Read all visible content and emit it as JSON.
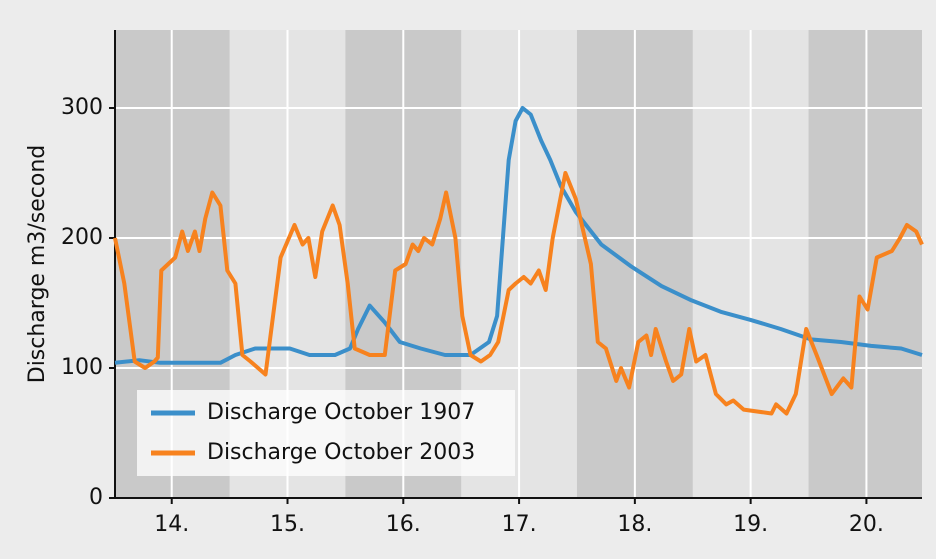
{
  "chart_data": {
    "type": "line",
    "y_label": "Discharge  m3/second",
    "xlim": [
      13.51,
      20.48
    ],
    "xticks": [
      {
        "value": 14,
        "label": "14."
      },
      {
        "value": 15,
        "label": "15."
      },
      {
        "value": 16,
        "label": "16."
      },
      {
        "value": 17,
        "label": "17."
      },
      {
        "value": 18,
        "label": "18."
      },
      {
        "value": 19,
        "label": "19."
      },
      {
        "value": 20,
        "label": "20."
      }
    ],
    "ylim": [
      0,
      360
    ],
    "yticks": [
      0,
      100,
      200,
      300
    ],
    "grid": true,
    "legend": "lower left",
    "series": [
      {
        "name": "Discharge October 1907",
        "color": "#3b8fca",
        "x": [
          13.51,
          13.72,
          13.9,
          14.42,
          14.55,
          14.72,
          15.02,
          15.19,
          15.41,
          15.54,
          15.61,
          15.71,
          15.84,
          15.97,
          16.15,
          16.36,
          16.58,
          16.74,
          16.81,
          16.91,
          16.97,
          17.03,
          17.1,
          17.19,
          17.27,
          17.36,
          17.49,
          17.71,
          17.97,
          18.23,
          18.49,
          18.75,
          19.0,
          19.26,
          19.52,
          19.78,
          20.04,
          20.3,
          20.48
        ],
        "values": [
          104,
          106,
          104,
          104,
          110,
          115,
          115,
          110,
          110,
          115,
          130,
          148,
          135,
          120,
          115,
          110,
          110,
          120,
          140,
          260,
          290,
          300,
          295,
          275,
          260,
          240,
          220,
          195,
          178,
          163,
          152,
          143,
          137,
          130,
          122,
          120,
          117,
          115,
          110
        ]
      },
      {
        "name": "Discharge October 2003",
        "color": "#f7821e",
        "x": [
          13.51,
          13.59,
          13.68,
          13.77,
          13.85,
          13.88,
          13.91,
          14.03,
          14.09,
          14.14,
          14.2,
          14.24,
          14.29,
          14.35,
          14.42,
          14.48,
          14.55,
          14.61,
          14.68,
          14.81,
          14.94,
          15.06,
          15.13,
          15.18,
          15.24,
          15.3,
          15.39,
          15.45,
          15.52,
          15.58,
          15.71,
          15.84,
          15.93,
          16.02,
          16.08,
          16.13,
          16.18,
          16.25,
          16.32,
          16.37,
          16.45,
          16.51,
          16.58,
          16.67,
          16.75,
          16.82,
          16.91,
          16.97,
          17.04,
          17.1,
          17.17,
          17.23,
          17.29,
          17.4,
          17.49,
          17.62,
          17.68,
          17.75,
          17.84,
          17.88,
          17.95,
          18.03,
          18.1,
          18.14,
          18.18,
          18.27,
          18.33,
          18.4,
          18.47,
          18.53,
          18.61,
          18.7,
          18.79,
          18.85,
          18.94,
          19.18,
          19.22,
          19.31,
          19.39,
          19.48,
          19.57,
          19.7,
          19.8,
          19.87,
          19.94,
          20.01,
          20.09,
          20.22,
          20.29,
          20.35,
          20.43,
          20.48
        ],
        "values": [
          200,
          165,
          105,
          100,
          105,
          108,
          175,
          185,
          205,
          190,
          205,
          190,
          215,
          235,
          225,
          175,
          165,
          110,
          105,
          95,
          185,
          210,
          195,
          200,
          170,
          205,
          225,
          210,
          165,
          115,
          110,
          110,
          175,
          180,
          195,
          190,
          200,
          195,
          215,
          235,
          200,
          140,
          110,
          105,
          110,
          120,
          160,
          165,
          170,
          165,
          175,
          160,
          200,
          250,
          230,
          180,
          120,
          115,
          90,
          100,
          85,
          120,
          125,
          110,
          130,
          105,
          90,
          95,
          130,
          105,
          110,
          80,
          72,
          75,
          68,
          65,
          72,
          65,
          80,
          130,
          110,
          80,
          92,
          85,
          155,
          145,
          185,
          190,
          200,
          210,
          205,
          195
        ]
      }
    ]
  }
}
